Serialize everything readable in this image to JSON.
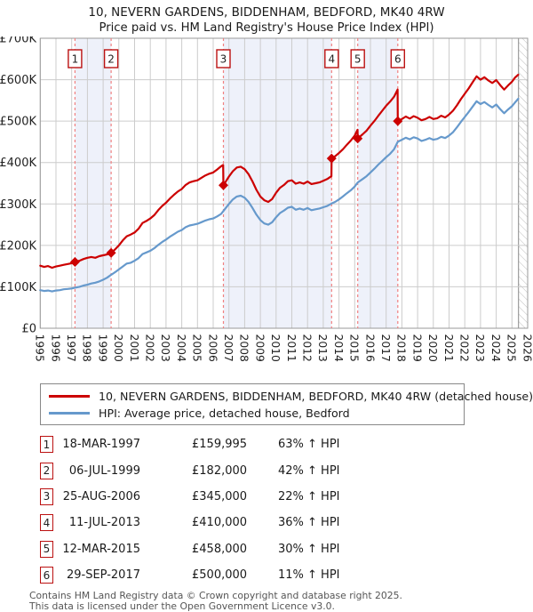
{
  "title": {
    "line1": "10, NEVERN GARDENS, BIDDENHAM, BEDFORD, MK40 4RW",
    "line2": "Price paid vs. HM Land Registry's House Price Index (HPI)"
  },
  "chart_data": {
    "type": "line",
    "title": "Price paid vs. HM Land Registry's House Price Index (HPI)",
    "x_axis": {
      "start_year": 1995,
      "end_year": 2026,
      "tick_step": 1,
      "tick_label_rotation": 90
    },
    "y_axis": {
      "unit": "GBP",
      "min": 0,
      "max": 700000,
      "ticks": [
        [
          0,
          "£0"
        ],
        [
          100,
          "£100K"
        ],
        [
          200,
          "£200K"
        ],
        [
          300,
          "£300K"
        ],
        [
          400,
          "£400K"
        ],
        [
          500,
          "£500K"
        ],
        [
          600,
          "£600K"
        ],
        [
          700,
          "£700K"
        ]
      ]
    },
    "grid": true,
    "future_hatch_start_year": 2025.42,
    "ownership_shaded_bands": [
      [
        1997.21,
        1999.51
      ],
      [
        2006.65,
        2013.53
      ],
      [
        2015.19,
        2017.74
      ]
    ],
    "colors": {
      "property": "#cc0000",
      "hpi": "#6699cc",
      "band": "#eef1fa",
      "sale_dash": "#f08080",
      "grid": "#cccccc",
      "border": "#999999",
      "hatch": "#bbbbbb"
    },
    "sales": [
      {
        "num": "1",
        "date": "18-MAR-1997",
        "year": 1997.21,
        "price": 159995,
        "price_label": "£159,995",
        "vs_hpi": "63% ↑ HPI"
      },
      {
        "num": "2",
        "date": "06-JUL-1999",
        "year": 1999.51,
        "price": 182000,
        "price_label": "£182,000",
        "vs_hpi": "42% ↑ HPI"
      },
      {
        "num": "3",
        "date": "25-AUG-2006",
        "year": 2006.65,
        "price": 345000,
        "price_label": "£345,000",
        "vs_hpi": "22% ↑ HPI"
      },
      {
        "num": "4",
        "date": "11-JUL-2013",
        "year": 2013.53,
        "price": 410000,
        "price_label": "£410,000",
        "vs_hpi": "36% ↑ HPI"
      },
      {
        "num": "5",
        "date": "12-MAR-2015",
        "year": 2015.19,
        "price": 458000,
        "price_label": "£458,000",
        "vs_hpi": "30% ↑ HPI"
      },
      {
        "num": "6",
        "date": "29-SEP-2017",
        "year": 2017.74,
        "price": 500000,
        "price_label": "£500,000",
        "vs_hpi": "11% ↑ HPI"
      }
    ],
    "series": [
      {
        "name": "10, NEVERN GARDENS, BIDDENHAM, BEDFORD, MK40 4RW (detached house)",
        "color": "#cc0000",
        "units": "GBP_thousands",
        "points": [
          [
            1995.0,
            151
          ],
          [
            1995.25,
            148
          ],
          [
            1995.5,
            150
          ],
          [
            1995.75,
            146
          ],
          [
            1996.0,
            149
          ],
          [
            1996.25,
            151
          ],
          [
            1996.5,
            153
          ],
          [
            1996.75,
            155
          ],
          [
            1997.0,
            157
          ],
          [
            1997.21,
            160
          ],
          [
            1997.5,
            163
          ],
          [
            1997.75,
            167
          ],
          [
            1998.0,
            170
          ],
          [
            1998.25,
            172
          ],
          [
            1998.5,
            170
          ],
          [
            1998.75,
            174
          ],
          [
            1999.0,
            176
          ],
          [
            1999.25,
            178
          ],
          [
            1999.51,
            182
          ],
          [
            1999.75,
            190
          ],
          [
            2000.0,
            200
          ],
          [
            2000.25,
            212
          ],
          [
            2000.5,
            222
          ],
          [
            2000.75,
            226
          ],
          [
            2001.0,
            231
          ],
          [
            2001.25,
            240
          ],
          [
            2001.5,
            254
          ],
          [
            2001.75,
            259
          ],
          [
            2002.0,
            265
          ],
          [
            2002.25,
            273
          ],
          [
            2002.5,
            285
          ],
          [
            2002.75,
            295
          ],
          [
            2003.0,
            303
          ],
          [
            2003.25,
            313
          ],
          [
            2003.5,
            322
          ],
          [
            2003.75,
            330
          ],
          [
            2004.0,
            336
          ],
          [
            2004.25,
            346
          ],
          [
            2004.5,
            352
          ],
          [
            2004.75,
            355
          ],
          [
            2005.0,
            357
          ],
          [
            2005.25,
            363
          ],
          [
            2005.5,
            369
          ],
          [
            2005.75,
            373
          ],
          [
            2006.0,
            376
          ],
          [
            2006.25,
            383
          ],
          [
            2006.5,
            391
          ],
          [
            2006.63,
            394
          ],
          [
            2006.65,
            345
          ],
          [
            2007.0,
            366
          ],
          [
            2007.25,
            379
          ],
          [
            2007.5,
            388
          ],
          [
            2007.75,
            390
          ],
          [
            2008.0,
            384
          ],
          [
            2008.25,
            372
          ],
          [
            2008.5,
            354
          ],
          [
            2008.75,
            334
          ],
          [
            2009.0,
            318
          ],
          [
            2009.25,
            309
          ],
          [
            2009.5,
            305
          ],
          [
            2009.75,
            312
          ],
          [
            2010.0,
            327
          ],
          [
            2010.25,
            339
          ],
          [
            2010.5,
            346
          ],
          [
            2010.75,
            355
          ],
          [
            2011.0,
            357
          ],
          [
            2011.25,
            349
          ],
          [
            2011.5,
            352
          ],
          [
            2011.75,
            349
          ],
          [
            2012.0,
            354
          ],
          [
            2012.25,
            348
          ],
          [
            2012.5,
            350
          ],
          [
            2012.75,
            352
          ],
          [
            2013.0,
            356
          ],
          [
            2013.25,
            360
          ],
          [
            2013.52,
            367
          ],
          [
            2013.53,
            410
          ],
          [
            2013.75,
            415
          ],
          [
            2014.0,
            423
          ],
          [
            2014.25,
            432
          ],
          [
            2014.5,
            443
          ],
          [
            2014.75,
            453
          ],
          [
            2015.0,
            465
          ],
          [
            2015.18,
            479
          ],
          [
            2015.19,
            458
          ],
          [
            2015.5,
            468
          ],
          [
            2015.75,
            477
          ],
          [
            2016.0,
            489
          ],
          [
            2016.25,
            500
          ],
          [
            2016.5,
            513
          ],
          [
            2016.75,
            525
          ],
          [
            2017.0,
            537
          ],
          [
            2017.25,
            547
          ],
          [
            2017.5,
            559
          ],
          [
            2017.73,
            576
          ],
          [
            2017.74,
            500
          ],
          [
            2018.0,
            505
          ],
          [
            2018.25,
            511
          ],
          [
            2018.5,
            506
          ],
          [
            2018.75,
            512
          ],
          [
            2019.0,
            508
          ],
          [
            2019.25,
            502
          ],
          [
            2019.5,
            505
          ],
          [
            2019.75,
            510
          ],
          [
            2020.0,
            505
          ],
          [
            2020.25,
            507
          ],
          [
            2020.5,
            513
          ],
          [
            2020.75,
            509
          ],
          [
            2021.0,
            516
          ],
          [
            2021.25,
            525
          ],
          [
            2021.5,
            538
          ],
          [
            2021.75,
            553
          ],
          [
            2022.0,
            566
          ],
          [
            2022.25,
            579
          ],
          [
            2022.5,
            594
          ],
          [
            2022.75,
            608
          ],
          [
            2023.0,
            600
          ],
          [
            2023.25,
            606
          ],
          [
            2023.5,
            598
          ],
          [
            2023.75,
            592
          ],
          [
            2024.0,
            599
          ],
          [
            2024.25,
            587
          ],
          [
            2024.5,
            576
          ],
          [
            2024.75,
            586
          ],
          [
            2025.0,
            595
          ],
          [
            2025.2,
            605
          ],
          [
            2025.4,
            612
          ]
        ]
      },
      {
        "name": "HPI: Average price, detached house, Bedford",
        "color": "#6699cc",
        "units": "GBP_thousands",
        "points": [
          [
            1995.0,
            92
          ],
          [
            1995.25,
            90
          ],
          [
            1995.5,
            91
          ],
          [
            1995.75,
            89
          ],
          [
            1996.0,
            91
          ],
          [
            1996.25,
            92
          ],
          [
            1996.5,
            94
          ],
          [
            1996.75,
            95
          ],
          [
            1997.0,
            96
          ],
          [
            1997.21,
            98
          ],
          [
            1997.5,
            100
          ],
          [
            1997.75,
            103
          ],
          [
            1998.0,
            105
          ],
          [
            1998.25,
            108
          ],
          [
            1998.5,
            110
          ],
          [
            1998.75,
            113
          ],
          [
            1999.0,
            117
          ],
          [
            1999.25,
            122
          ],
          [
            1999.51,
            129
          ],
          [
            1999.75,
            135
          ],
          [
            2000.0,
            142
          ],
          [
            2000.25,
            149
          ],
          [
            2000.5,
            156
          ],
          [
            2000.75,
            158
          ],
          [
            2001.0,
            163
          ],
          [
            2001.25,
            169
          ],
          [
            2001.5,
            179
          ],
          [
            2001.75,
            183
          ],
          [
            2002.0,
            187
          ],
          [
            2002.25,
            193
          ],
          [
            2002.5,
            201
          ],
          [
            2002.75,
            208
          ],
          [
            2003.0,
            214
          ],
          [
            2003.25,
            221
          ],
          [
            2003.5,
            227
          ],
          [
            2003.75,
            233
          ],
          [
            2004.0,
            237
          ],
          [
            2004.25,
            244
          ],
          [
            2004.5,
            248
          ],
          [
            2004.75,
            250
          ],
          [
            2005.0,
            252
          ],
          [
            2005.25,
            256
          ],
          [
            2005.5,
            260
          ],
          [
            2005.75,
            263
          ],
          [
            2006.0,
            265
          ],
          [
            2006.25,
            270
          ],
          [
            2006.5,
            276
          ],
          [
            2006.65,
            283
          ],
          [
            2007.0,
            300
          ],
          [
            2007.25,
            311
          ],
          [
            2007.5,
            318
          ],
          [
            2007.75,
            320
          ],
          [
            2008.0,
            315
          ],
          [
            2008.25,
            305
          ],
          [
            2008.5,
            290
          ],
          [
            2008.75,
            274
          ],
          [
            2009.0,
            261
          ],
          [
            2009.25,
            253
          ],
          [
            2009.5,
            250
          ],
          [
            2009.75,
            256
          ],
          [
            2010.0,
            268
          ],
          [
            2010.25,
            278
          ],
          [
            2010.5,
            284
          ],
          [
            2010.75,
            291
          ],
          [
            2011.0,
            293
          ],
          [
            2011.25,
            286
          ],
          [
            2011.5,
            289
          ],
          [
            2011.75,
            286
          ],
          [
            2012.0,
            290
          ],
          [
            2012.25,
            285
          ],
          [
            2012.5,
            287
          ],
          [
            2012.75,
            289
          ],
          [
            2013.0,
            292
          ],
          [
            2013.25,
            295
          ],
          [
            2013.53,
            301
          ],
          [
            2013.75,
            305
          ],
          [
            2014.0,
            311
          ],
          [
            2014.25,
            318
          ],
          [
            2014.5,
            326
          ],
          [
            2014.75,
            333
          ],
          [
            2015.0,
            342
          ],
          [
            2015.19,
            352
          ],
          [
            2015.5,
            360
          ],
          [
            2015.75,
            367
          ],
          [
            2016.0,
            376
          ],
          [
            2016.25,
            385
          ],
          [
            2016.5,
            395
          ],
          [
            2016.75,
            404
          ],
          [
            2017.0,
            413
          ],
          [
            2017.25,
            421
          ],
          [
            2017.5,
            432
          ],
          [
            2017.74,
            450
          ],
          [
            2018.0,
            455
          ],
          [
            2018.25,
            460
          ],
          [
            2018.5,
            456
          ],
          [
            2018.75,
            461
          ],
          [
            2019.0,
            458
          ],
          [
            2019.25,
            452
          ],
          [
            2019.5,
            455
          ],
          [
            2019.75,
            459
          ],
          [
            2020.0,
            455
          ],
          [
            2020.25,
            457
          ],
          [
            2020.5,
            462
          ],
          [
            2020.75,
            459
          ],
          [
            2021.0,
            465
          ],
          [
            2021.25,
            473
          ],
          [
            2021.5,
            485
          ],
          [
            2021.75,
            498
          ],
          [
            2022.0,
            510
          ],
          [
            2022.25,
            522
          ],
          [
            2022.5,
            535
          ],
          [
            2022.75,
            548
          ],
          [
            2023.0,
            541
          ],
          [
            2023.25,
            546
          ],
          [
            2023.5,
            539
          ],
          [
            2023.75,
            533
          ],
          [
            2024.0,
            540
          ],
          [
            2024.25,
            529
          ],
          [
            2024.5,
            519
          ],
          [
            2024.75,
            528
          ],
          [
            2025.0,
            536
          ],
          [
            2025.2,
            545
          ],
          [
            2025.4,
            554
          ]
        ]
      }
    ],
    "legend_position": "below"
  },
  "legend": {
    "items": [
      {
        "label": "10, NEVERN GARDENS, BIDDENHAM, BEDFORD, MK40 4RW (detached house)",
        "color": "#cc0000"
      },
      {
        "label": "HPI: Average price, detached house, Bedford",
        "color": "#6699cc"
      }
    ]
  },
  "footer": {
    "line1": "Contains HM Land Registry data © Crown copyright and database right 2025.",
    "line2": "This data is licensed under the Open Government Licence v3.0."
  }
}
